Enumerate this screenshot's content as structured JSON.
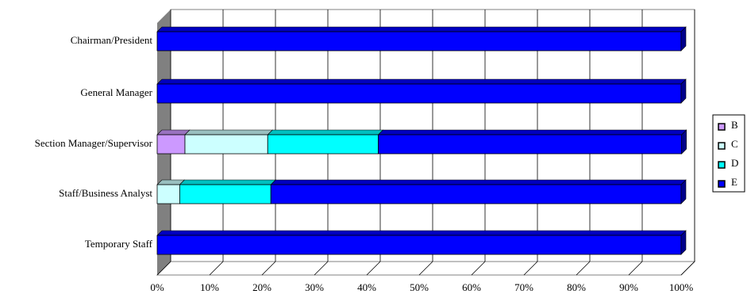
{
  "chart_data": {
    "type": "stacked_bar_horizontal_3d",
    "categories": [
      "Chairman/President",
      "General Manager",
      "Section Manager/Supervisor",
      "Staff/Business Analyst",
      "Temporary Staff"
    ],
    "series": [
      {
        "name": "B",
        "color": "#cc99ff",
        "values": [
          0,
          0,
          5.3,
          0,
          0
        ]
      },
      {
        "name": "C",
        "color": "#ccffff",
        "values": [
          0,
          0,
          15.8,
          4.3,
          0
        ]
      },
      {
        "name": "D",
        "color": "#00ffff",
        "values": [
          0,
          0,
          21.1,
          17.4,
          0
        ]
      },
      {
        "name": "E",
        "color": "#0000ff",
        "values": [
          100,
          100,
          57.9,
          78.3,
          100
        ]
      }
    ],
    "xlim": [
      0,
      100
    ],
    "xticks": [
      {
        "value": 0,
        "label": "0%"
      },
      {
        "value": 10,
        "label": "10%"
      },
      {
        "value": 20,
        "label": "20%"
      },
      {
        "value": 30,
        "label": "30%"
      },
      {
        "value": 40,
        "label": "40%"
      },
      {
        "value": 50,
        "label": "50%"
      },
      {
        "value": 60,
        "label": "60%"
      },
      {
        "value": 70,
        "label": "70%"
      },
      {
        "value": 80,
        "label": "80%"
      },
      {
        "value": 90,
        "label": "90%"
      },
      {
        "value": 100,
        "label": "100%"
      }
    ],
    "grid": true,
    "legend": "right"
  }
}
